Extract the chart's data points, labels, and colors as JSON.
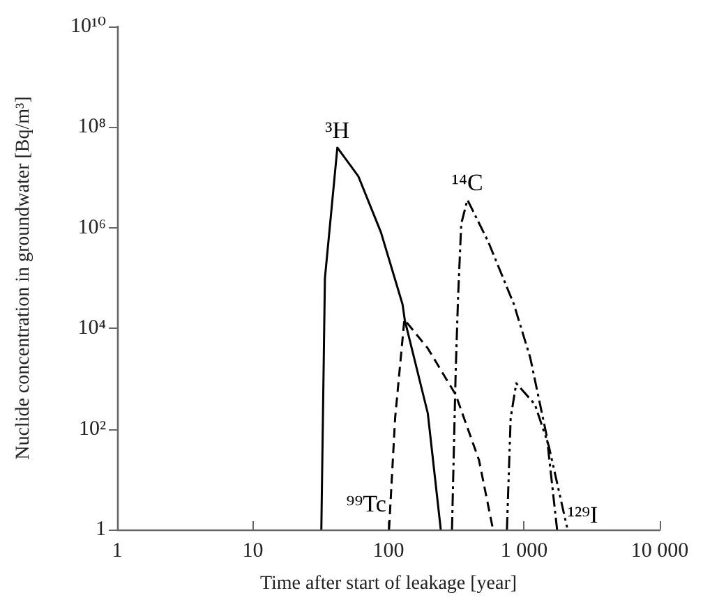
{
  "chart_data": {
    "type": "line",
    "xlabel": "Time after start of leakage [year]",
    "ylabel": "Nuclide concentration in groundwater [Bq/m³]",
    "log": "xy",
    "grid": false,
    "legend": false,
    "marker": "none",
    "xlim": [
      1,
      10000
    ],
    "xticks": [
      1,
      10,
      100,
      {
        "value": 1000,
        "label": "1 000"
      },
      {
        "value": 10000,
        "label": "10 000"
      }
    ],
    "ylim": [
      1,
      10000000000
    ],
    "yticks": [
      1,
      {
        "value": 100,
        "label": "10²"
      },
      {
        "value": 10000,
        "label": "10⁴"
      },
      {
        "value": 1000000,
        "label": "10⁶"
      },
      {
        "value": 100000000,
        "label": "10⁸"
      },
      {
        "value": 10000000000,
        "label": "10¹⁰"
      }
    ],
    "series": [
      {
        "name": "³H",
        "color": "#000000",
        "line_style": "solid",
        "x": [
          32,
          34,
          42,
          60,
          88,
          127,
          132,
          195,
          243
        ],
        "values": [
          1,
          98000,
          39000000,
          10500000,
          810000,
          30000,
          14500,
          204,
          1
        ]
      },
      {
        "name": "⁹⁹Tc",
        "color": "#000000",
        "line_style": "dashed",
        "x": [
          101,
          112,
          131,
          195,
          313,
          465,
          590
        ],
        "values": [
          1,
          166,
          15000,
          4000,
          480,
          24,
          1
        ]
      },
      {
        "name": "¹⁴C",
        "color": "#000000",
        "line_style": "dashdot",
        "x": [
          294,
          313,
          326,
          344,
          382,
          545,
          841,
          1110,
          1470,
          1750
        ],
        "values": [
          1,
          1380,
          42000,
          1200000,
          3600000,
          520000,
          30000,
          2600,
          71,
          1
        ]
      },
      {
        "name": "¹²⁹I",
        "color": "#000000",
        "line_style": "dashdotdot",
        "x": [
          747,
          796,
          875,
          1200,
          1520,
          2090
        ],
        "values": [
          1,
          166,
          810,
          309,
          46,
          1
        ]
      }
    ]
  }
}
